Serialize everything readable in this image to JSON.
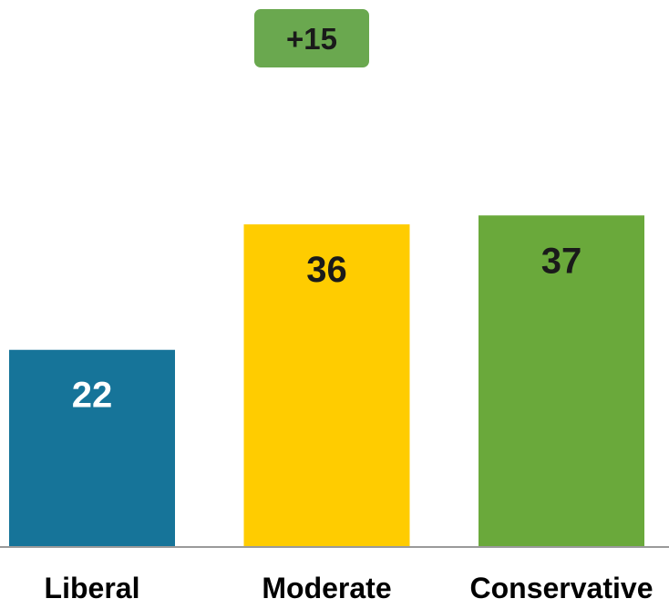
{
  "annotation": {
    "text": "+15",
    "color": "#6aa84f"
  },
  "chart_data": {
    "type": "bar",
    "categories": [
      "Liberal",
      "Moderate",
      "Conservative"
    ],
    "values": [
      22,
      36,
      37
    ],
    "data_labels": [
      "22",
      "36",
      "37"
    ],
    "colors": [
      "#167499",
      "#ffcc00",
      "#6aa93b"
    ],
    "label_colors": [
      "#ffffff",
      "#1a1a1a",
      "#1a1a1a"
    ],
    "ylim": [
      0,
      50
    ],
    "grid": false,
    "legend": "none"
  }
}
